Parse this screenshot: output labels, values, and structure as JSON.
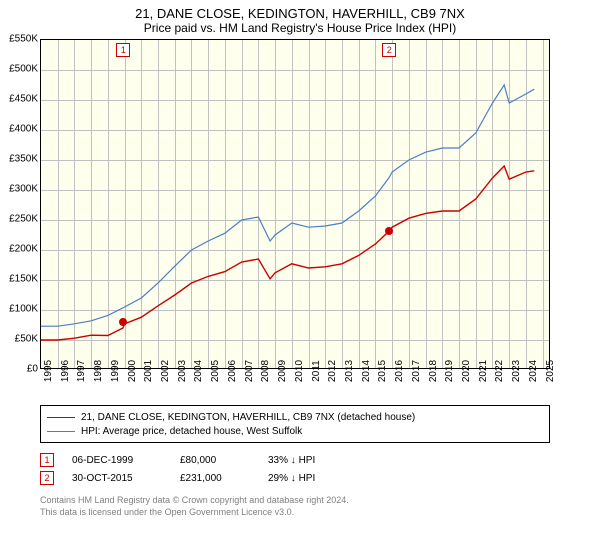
{
  "title_main": "21, DANE CLOSE, KEDINGTON, HAVERHILL, CB9 7NX",
  "title_sub": "Price paid vs. HM Land Registry's House Price Index (HPI)",
  "chart": {
    "type": "line",
    "background_color": "#ffffee",
    "grid_color": "#c0c0c0",
    "border_color": "#000000",
    "x_min": 1995,
    "x_max": 2025.5,
    "x_ticks": [
      1995,
      1996,
      1997,
      1998,
      1999,
      2000,
      2001,
      2002,
      2003,
      2004,
      2005,
      2006,
      2007,
      2008,
      2009,
      2010,
      2011,
      2012,
      2013,
      2014,
      2015,
      2016,
      2017,
      2018,
      2019,
      2020,
      2021,
      2022,
      2023,
      2024,
      2025
    ],
    "y_min": 0,
    "y_max": 550000,
    "y_ticks": [
      0,
      50000,
      100000,
      150000,
      200000,
      250000,
      300000,
      350000,
      400000,
      450000,
      500000,
      550000
    ],
    "y_tick_labels": [
      "£0",
      "£50K",
      "£100K",
      "£150K",
      "£200K",
      "£250K",
      "£300K",
      "£350K",
      "£400K",
      "£450K",
      "£500K",
      "£550K"
    ],
    "series": [
      {
        "name": "hpi",
        "color": "#4a7ec8",
        "width": 1.2,
        "points": [
          [
            1995,
            73000
          ],
          [
            1996,
            73000
          ],
          [
            1997,
            77000
          ],
          [
            1998,
            82000
          ],
          [
            1999,
            91000
          ],
          [
            2000,
            105000
          ],
          [
            2001,
            120000
          ],
          [
            2002,
            145000
          ],
          [
            2003,
            173000
          ],
          [
            2004,
            200000
          ],
          [
            2005,
            215000
          ],
          [
            2006,
            228000
          ],
          [
            2007,
            250000
          ],
          [
            2008,
            255000
          ],
          [
            2008.7,
            215000
          ],
          [
            2009,
            225000
          ],
          [
            2010,
            245000
          ],
          [
            2011,
            238000
          ],
          [
            2012,
            240000
          ],
          [
            2013,
            245000
          ],
          [
            2014,
            265000
          ],
          [
            2015,
            290000
          ],
          [
            2015.8,
            320000
          ],
          [
            2016,
            330000
          ],
          [
            2017,
            350000
          ],
          [
            2018,
            363000
          ],
          [
            2019,
            370000
          ],
          [
            2020,
            370000
          ],
          [
            2021,
            395000
          ],
          [
            2022,
            445000
          ],
          [
            2022.7,
            475000
          ],
          [
            2023,
            445000
          ],
          [
            2024,
            460000
          ],
          [
            2024.5,
            468000
          ]
        ]
      },
      {
        "name": "property",
        "color": "#cc0000",
        "width": 1.4,
        "points": [
          [
            1995,
            50000
          ],
          [
            1996,
            50000
          ],
          [
            1997,
            53000
          ],
          [
            1998,
            58000
          ],
          [
            1999,
            57500
          ],
          [
            1999.9,
            70000
          ],
          [
            2000,
            77000
          ],
          [
            2001,
            88000
          ],
          [
            2002,
            107000
          ],
          [
            2003,
            125000
          ],
          [
            2004,
            145000
          ],
          [
            2005,
            156000
          ],
          [
            2006,
            164000
          ],
          [
            2007,
            180000
          ],
          [
            2008,
            185000
          ],
          [
            2008.7,
            152000
          ],
          [
            2009,
            162000
          ],
          [
            2010,
            177000
          ],
          [
            2011,
            170000
          ],
          [
            2012,
            172000
          ],
          [
            2013,
            177000
          ],
          [
            2014,
            191000
          ],
          [
            2015,
            210000
          ],
          [
            2015.8,
            231000
          ],
          [
            2016,
            238000
          ],
          [
            2017,
            253000
          ],
          [
            2018,
            261000
          ],
          [
            2019,
            265000
          ],
          [
            2020,
            265000
          ],
          [
            2021,
            285000
          ],
          [
            2022,
            320000
          ],
          [
            2022.7,
            340000
          ],
          [
            2023,
            318000
          ],
          [
            2024,
            330000
          ],
          [
            2024.5,
            332000
          ]
        ]
      }
    ],
    "markers": [
      {
        "n": 1,
        "x": 1999.93,
        "y": 80000
      },
      {
        "n": 2,
        "x": 2015.83,
        "y": 231000
      }
    ]
  },
  "legend": {
    "items": [
      {
        "color": "#cc0000",
        "label": "21, DANE CLOSE, KEDINGTON, HAVERHILL, CB9 7NX (detached house)"
      },
      {
        "color": "#4a7ec8",
        "label": "HPI: Average price, detached house, West Suffolk"
      }
    ]
  },
  "sales": [
    {
      "n": 1,
      "date": "06-DEC-1999",
      "price": "£80,000",
      "diff": "33% ↓ HPI"
    },
    {
      "n": 2,
      "date": "30-OCT-2015",
      "price": "£231,000",
      "diff": "29% ↓ HPI"
    }
  ],
  "footer_line1": "Contains HM Land Registry data © Crown copyright and database right 2024.",
  "footer_line2": "This data is licensed under the Open Government Licence v3.0."
}
